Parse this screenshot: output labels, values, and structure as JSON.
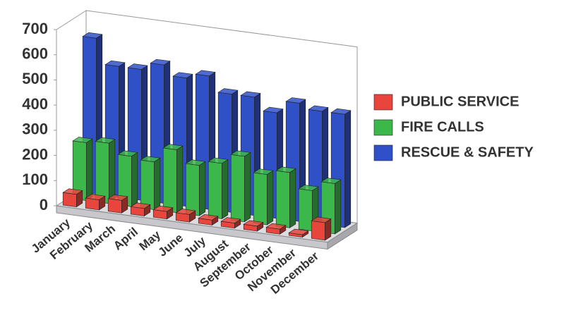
{
  "chart_data": {
    "type": "bar3d",
    "categories": [
      "January",
      "February",
      "March",
      "April",
      "May",
      "June",
      "July",
      "August",
      "September",
      "October",
      "November",
      "December"
    ],
    "series": [
      {
        "name": "PUBLIC SERVICE",
        "color": "#e8453c",
        "values": [
          50,
          40,
          50,
          30,
          30,
          30,
          20,
          20,
          20,
          20,
          10,
          70
        ]
      },
      {
        "name": "FIRE CALLS",
        "color": "#3cb84a",
        "values": [
          230,
          240,
          200,
          190,
          250,
          200,
          220,
          260,
          200,
          220,
          160,
          200
        ]
      },
      {
        "name": "RESCUE & SAFETY",
        "color": "#3050c8",
        "values": [
          620,
          520,
          520,
          550,
          510,
          530,
          470,
          470,
          420,
          470,
          450,
          450
        ]
      }
    ],
    "ylim": [
      0,
      700
    ],
    "yticks": [
      0,
      100,
      200,
      300,
      400,
      500,
      600,
      700
    ],
    "legend": "right"
  }
}
